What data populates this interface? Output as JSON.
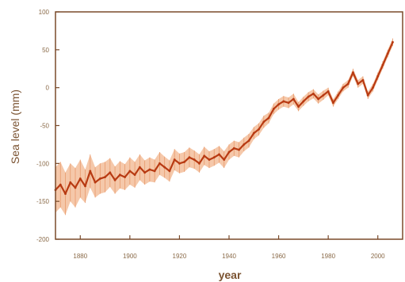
{
  "chart_data": {
    "type": "line",
    "xlabel": "year",
    "ylabel": "Sea level (mm)",
    "xlim": [
      1870,
      2010
    ],
    "ylim": [
      -200,
      100
    ],
    "xticks": [
      1880,
      1900,
      1920,
      1940,
      1960,
      1980,
      2000
    ],
    "yticks": [
      -200,
      -150,
      -100,
      -50,
      0,
      50,
      100
    ],
    "grid": false,
    "colors": {
      "frame": "#7a4a2a",
      "line": "#b83a12",
      "band": "#f2b58e",
      "text": "#8a6a48"
    },
    "series": [
      {
        "x": [
          1870,
          1872,
          1874,
          1876,
          1878,
          1880,
          1882,
          1884,
          1886,
          1888,
          1890,
          1892,
          1894,
          1896,
          1898,
          1900,
          1902,
          1904,
          1906,
          1908,
          1910,
          1912,
          1914,
          1916,
          1918,
          1920,
          1922,
          1924,
          1926,
          1928,
          1930,
          1932,
          1934,
          1936,
          1938,
          1940,
          1942,
          1944,
          1946,
          1948,
          1950,
          1952,
          1954,
          1956,
          1958,
          1960,
          1962,
          1964,
          1966,
          1968,
          1970,
          1972,
          1974,
          1976,
          1978,
          1980,
          1982,
          1984,
          1986,
          1988,
          1990,
          1992,
          1994,
          1996,
          1998,
          2000,
          2002,
          2004,
          2006
        ],
        "y": [
          -135,
          -128,
          -140,
          -125,
          -132,
          -120,
          -130,
          -110,
          -125,
          -120,
          -118,
          -112,
          -122,
          -115,
          -118,
          -110,
          -115,
          -105,
          -112,
          -108,
          -110,
          -100,
          -105,
          -110,
          -95,
          -100,
          -98,
          -92,
          -95,
          -100,
          -90,
          -95,
          -92,
          -88,
          -95,
          -85,
          -80,
          -82,
          -75,
          -70,
          -60,
          -55,
          -45,
          -40,
          -28,
          -22,
          -18,
          -20,
          -15,
          -25,
          -18,
          -12,
          -8,
          -15,
          -10,
          -5,
          -20,
          -10,
          0,
          5,
          20,
          5,
          10,
          -10,
          0,
          15,
          30,
          45,
          60
        ],
        "lower": [
          -165,
          -158,
          -168,
          -150,
          -158,
          -145,
          -152,
          -132,
          -145,
          -140,
          -138,
          -131,
          -140,
          -133,
          -135,
          -128,
          -132,
          -122,
          -128,
          -124,
          -125,
          -115,
          -119,
          -124,
          -109,
          -113,
          -111,
          -105,
          -107,
          -112,
          -102,
          -106,
          -103,
          -99,
          -106,
          -95,
          -90,
          -92,
          -84,
          -79,
          -68,
          -63,
          -53,
          -47,
          -35,
          -29,
          -25,
          -27,
          -22,
          -31,
          -24,
          -18,
          -14,
          -21,
          -16,
          -10,
          -25,
          -15,
          -5,
          0,
          15,
          0,
          5,
          -15,
          -5,
          10,
          25,
          40,
          55
        ],
        "upper": [
          -105,
          -98,
          -112,
          -100,
          -106,
          -95,
          -108,
          -88,
          -105,
          -100,
          -98,
          -93,
          -104,
          -97,
          -101,
          -92,
          -98,
          -88,
          -96,
          -92,
          -95,
          -85,
          -91,
          -96,
          -81,
          -87,
          -85,
          -79,
          -83,
          -88,
          -78,
          -84,
          -81,
          -77,
          -84,
          -75,
          -70,
          -72,
          -66,
          -61,
          -52,
          -47,
          -37,
          -33,
          -21,
          -15,
          -11,
          -13,
          -8,
          -19,
          -12,
          -6,
          -2,
          -9,
          -4,
          0,
          -15,
          -5,
          5,
          10,
          25,
          10,
          15,
          -5,
          5,
          20,
          35,
          50,
          65
        ]
      }
    ]
  }
}
